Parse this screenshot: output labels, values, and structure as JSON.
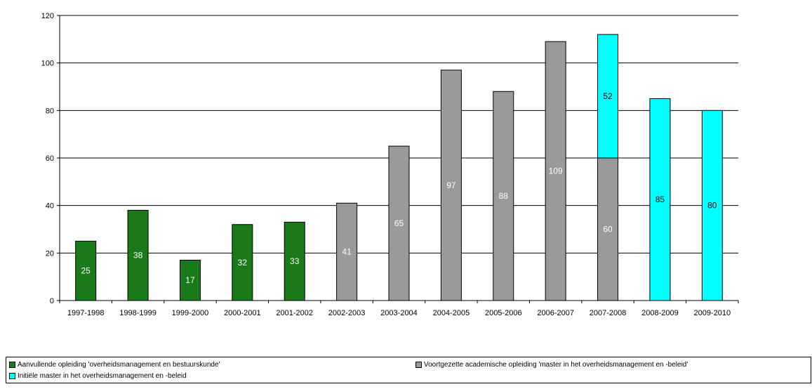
{
  "chart_data": {
    "type": "bar",
    "stacked": true,
    "categories": [
      "1997-1998",
      "1998-1999",
      "1999-2000",
      "2000-2001",
      "2001-2002",
      "2002-2003",
      "2003-2004",
      "2004-2005",
      "2005-2006",
      "2006-2007",
      "2007-2008",
      "2008-2009",
      "2009-2010"
    ],
    "series": [
      {
        "name": "Aanvullende opleiding 'overheidsmanagement en bestuurskunde'",
        "color": "#1a7a1a",
        "label_color": "#ffffff",
        "values": [
          25,
          38,
          17,
          32,
          33,
          0,
          0,
          0,
          0,
          0,
          0,
          0,
          0
        ]
      },
      {
        "name": "Voortgezette academische opleiding 'master in het overheidsmanagement en -beleid'",
        "color": "#9a9a9a",
        "label_color": "#ffffff",
        "values": [
          0,
          0,
          0,
          0,
          0,
          41,
          65,
          97,
          88,
          109,
          60,
          0,
          0
        ]
      },
      {
        "name": "Initiële master in het overheidsmanagement en -beleid",
        "color": "#00ffff",
        "label_color": "#000000",
        "values": [
          0,
          0,
          0,
          0,
          0,
          0,
          0,
          0,
          0,
          0,
          52,
          85,
          80
        ]
      }
    ],
    "ylim": [
      0,
      120
    ],
    "yticks": [
      0,
      20,
      40,
      60,
      80,
      100,
      120
    ],
    "grid": true,
    "legend_position": "bottom",
    "title": "",
    "xlabel": "",
    "ylabel": ""
  }
}
